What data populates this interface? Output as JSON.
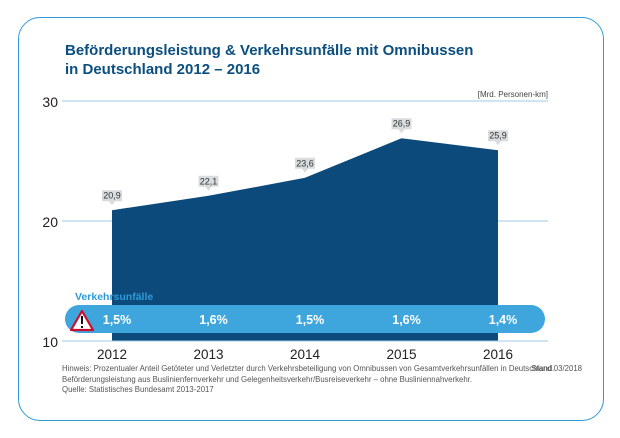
{
  "title": {
    "line1": "Beförderungsleistung & Verkehrsunfälle mit Omnibussen",
    "line2": "in Deutschland 2012 – 2016"
  },
  "chart_data": {
    "type": "area",
    "title": "Beförderungsleistung & Verkehrsunfälle mit Omnibussen in Deutschland 2012 – 2016",
    "unit_label": "[Mrd. Personen-km]",
    "categories": [
      "2012",
      "2013",
      "2014",
      "2015",
      "2016"
    ],
    "ylim": [
      10,
      30
    ],
    "yticks": [
      10,
      20,
      30
    ],
    "series": [
      {
        "name": "Beförderungsleistung",
        "values": [
          20.9,
          22.1,
          23.6,
          26.9,
          25.9
        ],
        "labels": [
          "20,9",
          "22,1",
          "23,6",
          "26,9",
          "25,9"
        ],
        "color": "#0c4a7b"
      }
    ],
    "accident_band": {
      "label": "Verkehrsunfälle",
      "values": [
        1.5,
        1.6,
        1.5,
        1.6,
        1.4
      ],
      "labels": [
        "1,5%",
        "1,6%",
        "1,5%",
        "1,6%",
        "1,4%"
      ],
      "color": "#3ea6dc"
    }
  },
  "notes": {
    "line1": "Hinweis: Prozentualer Anteil Getöteter und Verletzter durch Verkehrsbeteiligung von Omnibussen von Gesamtverkehrsunfällen in Deutschland.",
    "line2": "Beförderungsleistung aus Buslinienfernverkehr und Gelegenheitsverkehr/Busreiseverkehr – ohne Buslinien­nahverkehr.",
    "line3": "Quelle: Statistisches Bundesamt 2013-2017",
    "stand": "Stand 03/2018"
  }
}
